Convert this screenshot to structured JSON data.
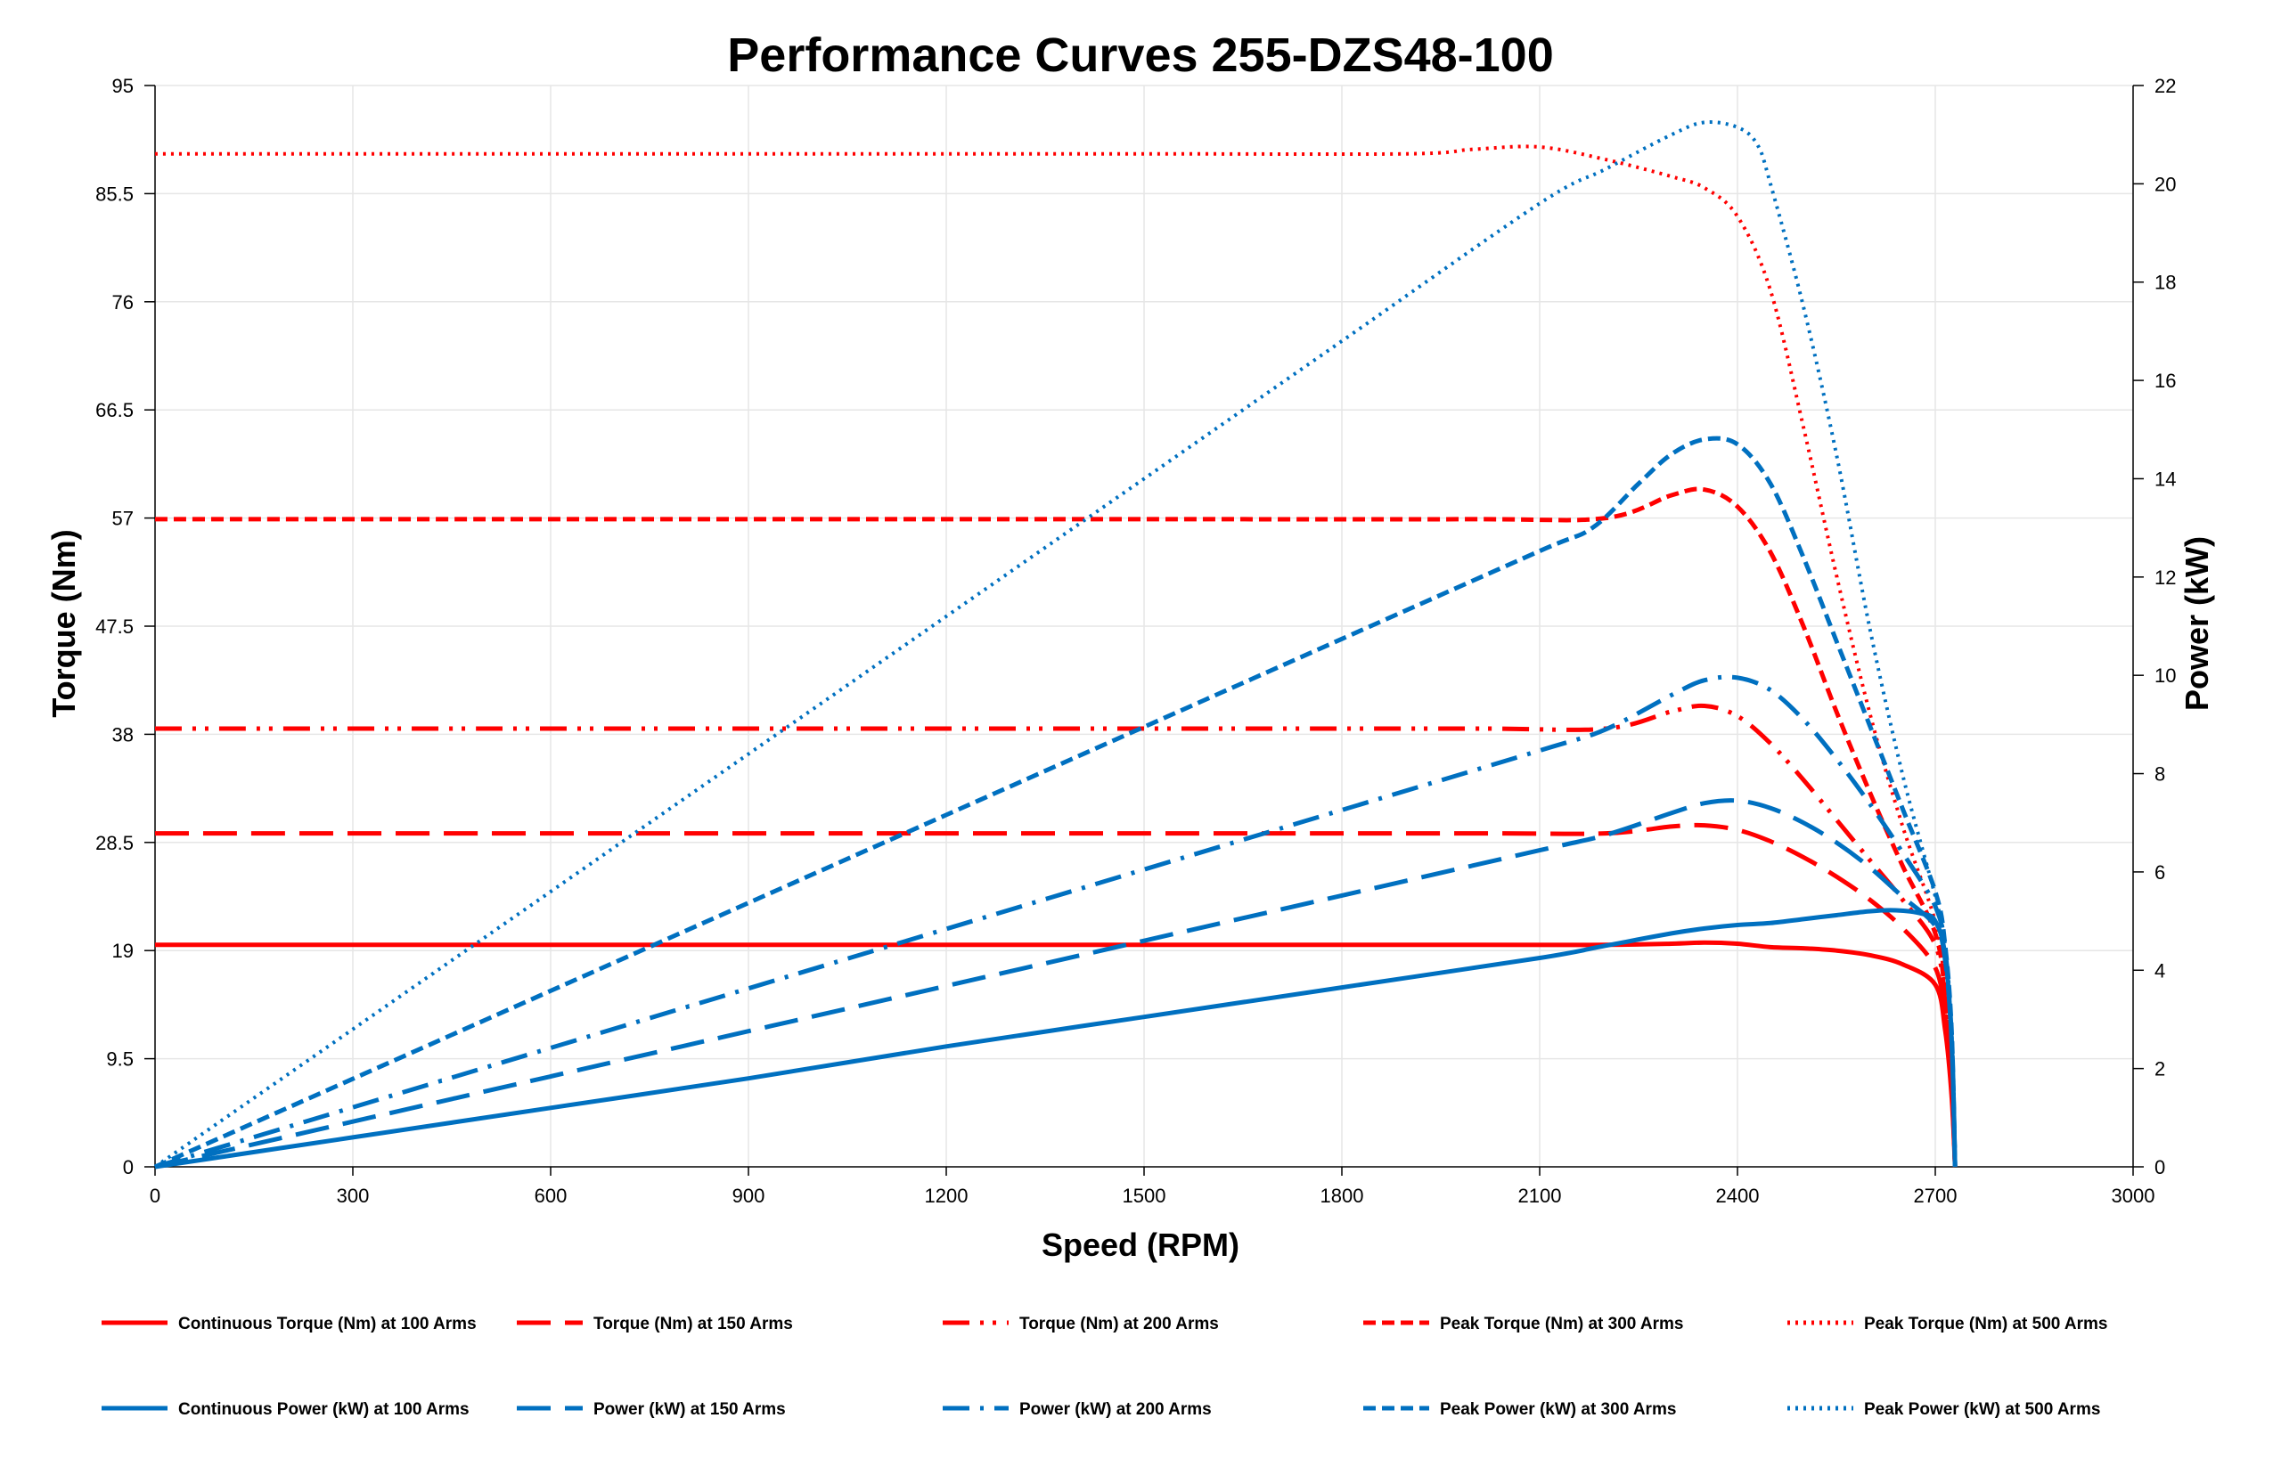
{
  "chart_data": {
    "type": "line",
    "title": "Performance Curves 255-DZS48-100",
    "xlabel": "Speed (RPM)",
    "ylabel": "Torque (Nm)",
    "y2label": "Power (kW)",
    "xlim": [
      0,
      3000
    ],
    "ylim": [
      0,
      95
    ],
    "y2lim": [
      0,
      22
    ],
    "xticks": [
      "0",
      "300",
      "600",
      "900",
      "1200",
      "1500",
      "1800",
      "2100",
      "2400",
      "2700",
      "3000"
    ],
    "yticks": [
      "0",
      "9.5",
      "19",
      "28.5",
      "38",
      "47.5",
      "57",
      "66.5",
      "76",
      "85.5",
      "95"
    ],
    "y2ticks": [
      "0",
      "2",
      "4",
      "6",
      "8",
      "10",
      "12",
      "14",
      "16",
      "18",
      "20",
      "22"
    ],
    "grid": true,
    "legend_position": "bottom",
    "series": [
      {
        "name": "Continuous Torque (Nm) at 100 Arms",
        "axis": "left",
        "color": "#ff0000",
        "dash": "solid",
        "x": [
          0,
          500,
          1000,
          1500,
          2000,
          2200,
          2300,
          2350,
          2400,
          2450,
          2500,
          2550,
          2600,
          2650,
          2700,
          2715,
          2725,
          2730
        ],
        "y": [
          19.5,
          19.5,
          19.5,
          19.5,
          19.5,
          19.5,
          19.6,
          19.7,
          19.6,
          19.3,
          19.2,
          19.0,
          18.6,
          17.8,
          16.0,
          12.0,
          6.0,
          0
        ]
      },
      {
        "name": "Torque (Nm) at 150 Arms",
        "axis": "left",
        "color": "#ff0000",
        "dash": "long",
        "x": [
          0,
          500,
          1000,
          1500,
          2000,
          2200,
          2300,
          2350,
          2400,
          2450,
          2500,
          2550,
          2600,
          2650,
          2700,
          2715,
          2725,
          2730
        ],
        "y": [
          29.3,
          29.3,
          29.3,
          29.3,
          29.3,
          29.3,
          29.9,
          30.0,
          29.6,
          28.6,
          27.2,
          25.5,
          23.5,
          21.0,
          17.5,
          13.0,
          6.5,
          0
        ]
      },
      {
        "name": "Torque (Nm) at 200 Arms",
        "axis": "left",
        "color": "#ff0000",
        "dash": "dashdotdot",
        "x": [
          0,
          500,
          1000,
          1500,
          2000,
          2200,
          2300,
          2350,
          2400,
          2450,
          2500,
          2550,
          2600,
          2650,
          2700,
          2715,
          2725,
          2730
        ],
        "y": [
          38.5,
          38.5,
          38.5,
          38.5,
          38.5,
          38.5,
          40.0,
          40.5,
          39.6,
          37.2,
          34.0,
          30.5,
          27.0,
          23.5,
          19.5,
          14.5,
          7.0,
          0
        ]
      },
      {
        "name": "Peak Torque (Nm) at 300 Arms",
        "axis": "left",
        "color": "#ff0000",
        "dash": "short",
        "x": [
          0,
          500,
          1000,
          1500,
          2000,
          2200,
          2300,
          2350,
          2400,
          2450,
          2500,
          2550,
          2600,
          2650,
          2700,
          2715,
          2725,
          2730
        ],
        "y": [
          56.9,
          56.9,
          56.9,
          56.9,
          56.9,
          57.0,
          59.0,
          59.5,
          58.0,
          54.0,
          47.5,
          40.0,
          33.0,
          26.5,
          20.5,
          15.0,
          7.5,
          0
        ]
      },
      {
        "name": "Peak Torque (Nm) at 500 Arms",
        "axis": "left",
        "color": "#ff0000",
        "dash": "dot",
        "x": [
          0,
          500,
          1000,
          1500,
          1900,
          2000,
          2100,
          2200,
          2300,
          2350,
          2400,
          2450,
          2500,
          2550,
          2600,
          2650,
          2700,
          2715,
          2725,
          2730
        ],
        "y": [
          89.0,
          89.0,
          89.0,
          89.0,
          89.0,
          89.4,
          89.6,
          88.5,
          87.0,
          86.0,
          83.5,
          77.0,
          65.0,
          52.0,
          40.0,
          30.0,
          21.5,
          15.5,
          8.0,
          0
        ]
      },
      {
        "name": "Continuous Power (kW) at 100 Arms",
        "axis": "right",
        "color": "#0070c0",
        "dash": "solid",
        "x": [
          0,
          300,
          600,
          900,
          1200,
          1500,
          1800,
          2100,
          2200,
          2300,
          2350,
          2400,
          2450,
          2500,
          2550,
          2600,
          2640,
          2680,
          2700,
          2715,
          2725,
          2730
        ],
        "y": [
          0,
          0.6,
          1.2,
          1.8,
          2.45,
          3.05,
          3.65,
          4.25,
          4.5,
          4.75,
          4.85,
          4.92,
          4.96,
          5.04,
          5.12,
          5.2,
          5.22,
          5.15,
          5.0,
          4.3,
          2.5,
          0
        ]
      },
      {
        "name": "Power (kW) at 150 Arms",
        "axis": "right",
        "color": "#0070c0",
        "dash": "long",
        "x": [
          0,
          300,
          600,
          900,
          1200,
          1500,
          1800,
          2100,
          2200,
          2300,
          2350,
          2400,
          2450,
          2500,
          2550,
          2600,
          2650,
          2700,
          2715,
          2725,
          2730
        ],
        "y": [
          0,
          0.92,
          1.84,
          2.76,
          3.68,
          4.6,
          5.52,
          6.44,
          6.75,
          7.2,
          7.4,
          7.45,
          7.3,
          7.0,
          6.6,
          6.1,
          5.5,
          4.9,
          4.2,
          2.5,
          0
        ]
      },
      {
        "name": "Power (kW) at 200 Arms",
        "axis": "right",
        "color": "#0070c0",
        "dash": "dashdot",
        "x": [
          0,
          300,
          600,
          900,
          1200,
          1500,
          1800,
          2100,
          2200,
          2300,
          2350,
          2400,
          2450,
          2500,
          2550,
          2600,
          2650,
          2700,
          2715,
          2725,
          2730
        ],
        "y": [
          0,
          1.21,
          2.42,
          3.63,
          4.84,
          6.05,
          7.26,
          8.47,
          8.9,
          9.6,
          9.9,
          9.95,
          9.7,
          9.1,
          8.3,
          7.4,
          6.4,
          5.3,
          4.4,
          2.6,
          0
        ]
      },
      {
        "name": "Peak Power (kW) at 300 Arms",
        "axis": "right",
        "color": "#0070c0",
        "dash": "short",
        "x": [
          0,
          300,
          600,
          900,
          1200,
          1500,
          1800,
          2100,
          2180,
          2250,
          2300,
          2350,
          2400,
          2450,
          2500,
          2550,
          2600,
          2650,
          2700,
          2715,
          2725,
          2730
        ],
        "y": [
          0,
          1.79,
          3.58,
          5.37,
          7.16,
          8.95,
          10.74,
          12.53,
          13.0,
          13.9,
          14.5,
          14.8,
          14.7,
          13.9,
          12.4,
          10.7,
          9.0,
          7.3,
          5.6,
          4.5,
          2.7,
          0
        ]
      },
      {
        "name": "Peak Power (kW) at 500 Arms",
        "axis": "right",
        "color": "#0070c0",
        "dash": "dot",
        "x": [
          0,
          300,
          600,
          900,
          1200,
          1500,
          1800,
          2100,
          2200,
          2300,
          2350,
          2400,
          2430,
          2450,
          2500,
          2550,
          2600,
          2650,
          2700,
          2715,
          2725,
          2730
        ],
        "y": [
          0,
          2.8,
          5.6,
          8.4,
          11.2,
          14.0,
          16.8,
          19.6,
          20.3,
          21.0,
          21.25,
          21.15,
          20.8,
          20.0,
          17.5,
          14.5,
          11.0,
          8.0,
          5.5,
          4.5,
          2.7,
          0
        ]
      }
    ]
  }
}
